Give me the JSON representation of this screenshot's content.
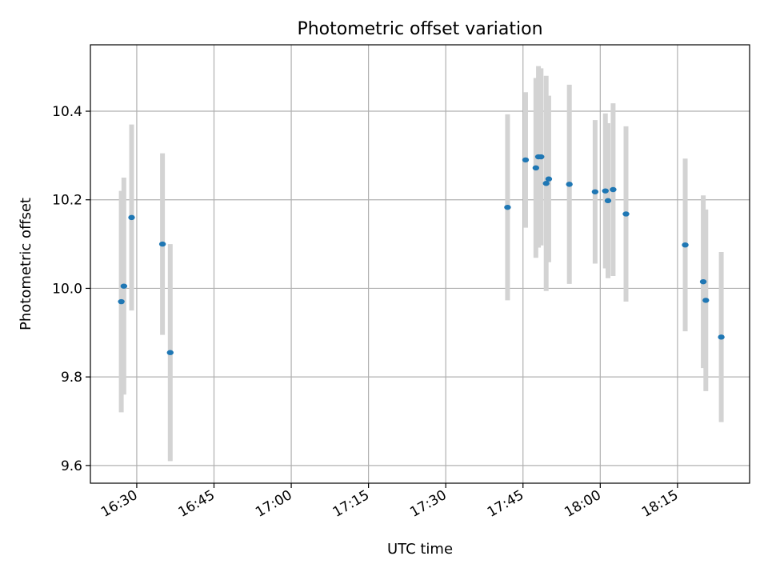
{
  "chart_data": {
    "type": "scatter",
    "title": "Photometric offset variation",
    "xlabel": "UTC time",
    "ylabel": "Photometric offset",
    "x_ticks": [
      "16:30",
      "16:45",
      "17:00",
      "17:15",
      "17:30",
      "17:45",
      "18:00",
      "18:15"
    ],
    "y_ticks": [
      "9.6",
      "9.8",
      "10.0",
      "10.2",
      "10.4"
    ],
    "xlim": [
      "16:21",
      "18:29"
    ],
    "ylim": [
      9.56,
      10.55
    ],
    "grid": true,
    "marker_color": "#1f77b4",
    "errorbar_color": "#d3d3d3",
    "points": [
      {
        "t": "16:27:00",
        "y": 9.97,
        "err": 0.25
      },
      {
        "t": "16:27:30",
        "y": 10.005,
        "err": 0.245
      },
      {
        "t": "16:29:00",
        "y": 10.16,
        "err": 0.21
      },
      {
        "t": "16:35:00",
        "y": 10.1,
        "err": 0.205
      },
      {
        "t": "16:36:30",
        "y": 9.855,
        "err": 0.245
      },
      {
        "t": "17:42:00",
        "y": 10.183,
        "err": 0.21
      },
      {
        "t": "17:45:30",
        "y": 10.29,
        "err": 0.153
      },
      {
        "t": "17:47:30",
        "y": 10.272,
        "err": 0.203
      },
      {
        "t": "17:48:00",
        "y": 10.297,
        "err": 0.205
      },
      {
        "t": "17:48:30",
        "y": 10.297,
        "err": 0.2
      },
      {
        "t": "17:49:30",
        "y": 10.237,
        "err": 0.243
      },
      {
        "t": "17:50:00",
        "y": 10.247,
        "err": 0.188
      },
      {
        "t": "17:54:00",
        "y": 10.235,
        "err": 0.225
      },
      {
        "t": "17:59:00",
        "y": 10.218,
        "err": 0.162
      },
      {
        "t": "18:01:00",
        "y": 10.22,
        "err": 0.175
      },
      {
        "t": "18:01:30",
        "y": 10.198,
        "err": 0.175
      },
      {
        "t": "18:02:30",
        "y": 10.223,
        "err": 0.195
      },
      {
        "t": "18:05:00",
        "y": 10.168,
        "err": 0.198
      },
      {
        "t": "18:16:30",
        "y": 10.098,
        "err": 0.195
      },
      {
        "t": "18:20:00",
        "y": 10.015,
        "err": 0.195
      },
      {
        "t": "18:20:30",
        "y": 9.973,
        "err": 0.205
      },
      {
        "t": "18:23:30",
        "y": 9.89,
        "err": 0.192
      }
    ]
  }
}
